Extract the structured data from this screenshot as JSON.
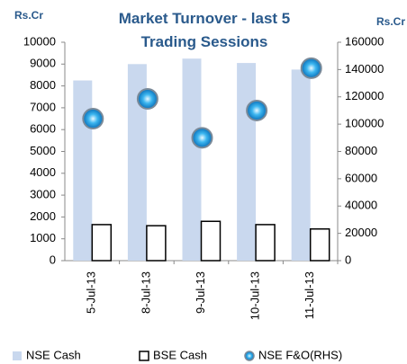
{
  "chart_data": {
    "type": "bar",
    "title": "Market Turnover - last 5 Trading Sessions",
    "ylabel": "Rs.Cr",
    "y2label": "Rs.Cr",
    "categories": [
      "5-Jul-13",
      "8-Jul-13",
      "9-Jul-13",
      "10-Jul-13",
      "11-Jul-13"
    ],
    "series": [
      {
        "name": "NSE Cash",
        "type": "bar",
        "color": "#c9d8ee",
        "values": [
          8250,
          9000,
          9250,
          9050,
          8750
        ]
      },
      {
        "name": "BSE Cash",
        "type": "bar",
        "color": "#ffffff",
        "values": [
          1650,
          1600,
          1800,
          1650,
          1450
        ]
      },
      {
        "name": "NSE F&O(RHS)",
        "type": "scatter",
        "axis": "y2",
        "color": "#29a8e0",
        "values": [
          104000,
          118500,
          90000,
          110000,
          141000
        ]
      }
    ],
    "ylim": [
      0,
      10000
    ],
    "yticks": [
      0,
      1000,
      2000,
      3000,
      4000,
      5000,
      6000,
      7000,
      8000,
      9000,
      10000
    ],
    "y2lim": [
      0,
      160000
    ],
    "y2ticks": [
      0,
      20000,
      40000,
      60000,
      80000,
      100000,
      120000,
      140000,
      160000
    ],
    "legend": "bottom"
  }
}
